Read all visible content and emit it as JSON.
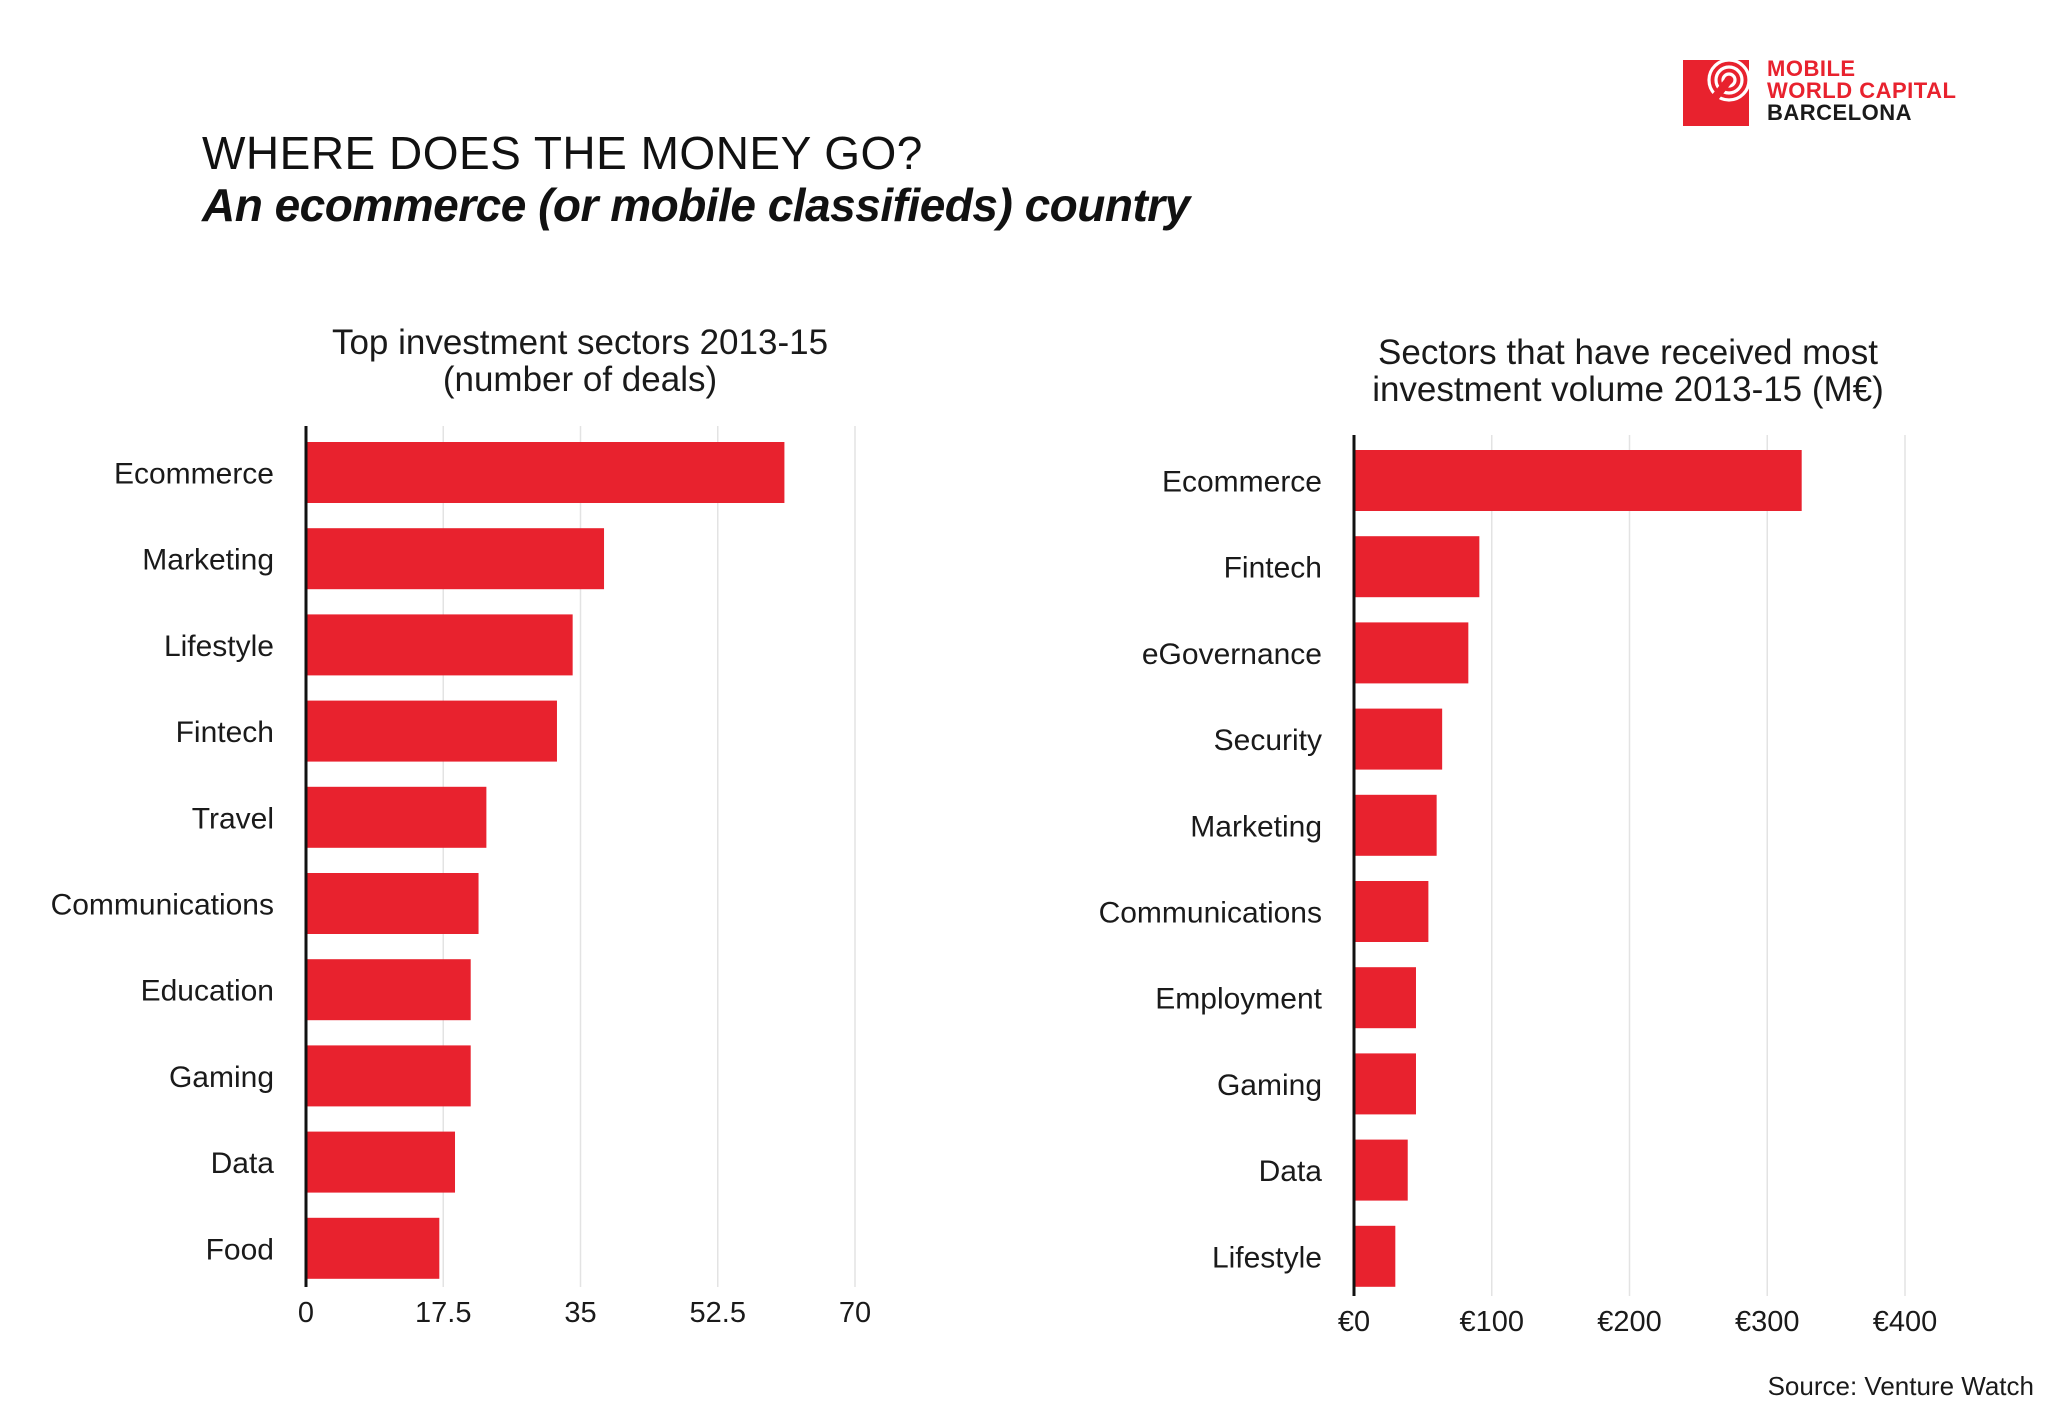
{
  "header": {
    "title": "WHERE DOES THE MONEY GO?",
    "subtitle": "An ecommerce (or mobile classifieds) country"
  },
  "logo": {
    "line1": "MOBILE",
    "line2": "WORLD CAPITAL",
    "line3": "BARCELONA",
    "icon": "concentric-rings-icon"
  },
  "colors": {
    "bar": "#e8222e",
    "grid": "#e3e3e3",
    "axis": "#111111",
    "text": "#1a1a1a"
  },
  "source": "Source: Venture Watch",
  "chart_data": [
    {
      "type": "bar",
      "orientation": "horizontal",
      "title": "Top investment sectors 2013-15",
      "subtitle": "(number of deals)",
      "xlabel": "",
      "ylabel": "",
      "categories": [
        "Ecommerce",
        "Marketing",
        "Lifestyle",
        "Fintech",
        "Travel",
        "Communications",
        "Education",
        "Gaming",
        "Data",
        "Food"
      ],
      "values": [
        61,
        38,
        34,
        32,
        23,
        22,
        21,
        21,
        19,
        17
      ],
      "xlim": [
        0,
        70
      ],
      "ticks": [
        0,
        17.5,
        35,
        52.5,
        70
      ],
      "tick_labels": [
        "0",
        "17.5",
        "35",
        "52.5",
        "70"
      ],
      "grid": true,
      "legend": "none"
    },
    {
      "type": "bar",
      "orientation": "horizontal",
      "title": "Sectors that have received most",
      "subtitle": "investment volume 2013-15 (M€)",
      "xlabel": "",
      "ylabel": "",
      "categories": [
        "Ecommerce",
        "Fintech",
        "eGovernance",
        "Security",
        "Marketing",
        "Communications",
        "Employment",
        "Gaming",
        "Data",
        "Lifestyle"
      ],
      "values": [
        325,
        91,
        83,
        64,
        60,
        54,
        45,
        45,
        39,
        30
      ],
      "xlim": [
        0,
        400
      ],
      "ticks": [
        0,
        100,
        200,
        300,
        400
      ],
      "tick_labels": [
        "€0",
        "€100",
        "€200",
        "€300",
        "€400"
      ],
      "grid": true,
      "legend": "none"
    }
  ]
}
